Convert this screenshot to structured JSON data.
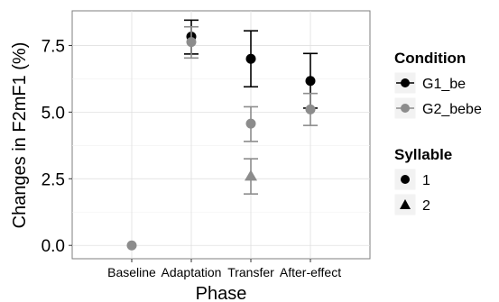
{
  "chart_data": {
    "type": "scatter",
    "xlabel": "Phase",
    "ylabel": "Changes in F2mF1 (%)",
    "categories": [
      "Baseline",
      "Adaptation",
      "Transfer",
      "After-effect"
    ],
    "ylim": [
      -0.5,
      8.8
    ],
    "yticks": [
      0.0,
      2.5,
      5.0,
      7.5
    ],
    "ytick_labels": [
      "0.0",
      "2.5",
      "5.0",
      "7.5"
    ],
    "grid": true,
    "legend_placement": "right",
    "legend_condition_title": "Condition",
    "legend_syllable_title": "Syllable",
    "series": [
      {
        "name": "G1_be",
        "color": "#000000",
        "points": [
          {
            "category": "Adaptation",
            "syllable": "1",
            "y": 7.83,
            "ylow": 7.18,
            "yhigh": 8.45
          },
          {
            "category": "Transfer",
            "syllable": "1",
            "y": 7.0,
            "ylow": 5.95,
            "yhigh": 8.05
          },
          {
            "category": "After-effect",
            "syllable": "1",
            "y": 6.17,
            "ylow": 5.15,
            "yhigh": 7.2
          }
        ]
      },
      {
        "name": "G2_bebe",
        "color": "#8c8c8c",
        "points": [
          {
            "category": "Baseline",
            "syllable": "1",
            "y": 0.0,
            "ylow": 0.0,
            "yhigh": 0.0
          },
          {
            "category": "Adaptation",
            "syllable": "1",
            "y": 7.63,
            "ylow": 7.03,
            "yhigh": 8.2
          },
          {
            "category": "Transfer",
            "syllable": "1",
            "y": 4.57,
            "ylow": 3.9,
            "yhigh": 5.2
          },
          {
            "category": "Transfer",
            "syllable": "2",
            "y": 2.6,
            "ylow": 1.93,
            "yhigh": 3.25
          },
          {
            "category": "After-effect",
            "syllable": "1",
            "y": 5.1,
            "ylow": 4.5,
            "yhigh": 5.7
          }
        ]
      }
    ],
    "syllable_legend": [
      {
        "label": "1",
        "shape": "circle"
      },
      {
        "label": "2",
        "shape": "triangle"
      }
    ]
  }
}
